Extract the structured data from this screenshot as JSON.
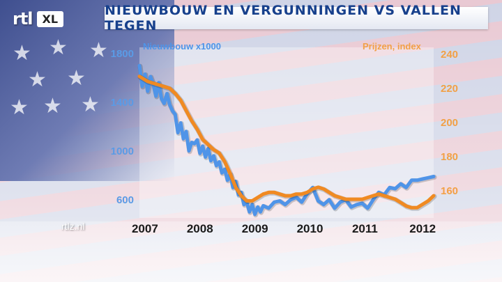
{
  "brand": {
    "logo_rtl": "rtl",
    "logo_xl": "XL"
  },
  "header": {
    "title": "NIEUWBOUW EN VERGUNNINGEN VS VALLEN TEGEN"
  },
  "footer": {
    "source": "rtlz.nl"
  },
  "colors": {
    "left_series": "#4f94e8",
    "right_series": "#f08a22",
    "title": "#17408c"
  },
  "chart_data": {
    "type": "line",
    "title": "NIEUWBOUW EN VERGUNNINGEN VS VALLEN TEGEN",
    "x_tick_labels": [
      "2007",
      "2008",
      "2009",
      "2010",
      "2011",
      "2012"
    ],
    "y_left": {
      "label": "Nieuwbouw x1000",
      "ticks": [
        600,
        1000,
        1400,
        1800
      ],
      "ylim": [
        450,
        1850
      ]
    },
    "y_right": {
      "label": "Prijzen, index",
      "ticks": [
        160,
        180,
        200,
        220,
        240
      ],
      "ylim": [
        144,
        244
      ]
    },
    "grid": false,
    "series": [
      {
        "name": "Nieuwbouw x1000",
        "axis": "left",
        "x": [
          2006.95,
          2007.0,
          2007.05,
          2007.1,
          2007.15,
          2007.2,
          2007.25,
          2007.3,
          2007.35,
          2007.4,
          2007.45,
          2007.5,
          2007.55,
          2007.6,
          2007.65,
          2007.7,
          2007.75,
          2007.8,
          2007.85,
          2007.9,
          2007.95,
          2008.0,
          2008.05,
          2008.1,
          2008.15,
          2008.2,
          2008.25,
          2008.3,
          2008.35,
          2008.4,
          2008.45,
          2008.5,
          2008.55,
          2008.6,
          2008.65,
          2008.7,
          2008.75,
          2008.8,
          2008.85,
          2008.9,
          2008.95,
          2009.0,
          2009.05,
          2009.1,
          2009.15,
          2009.2,
          2009.3,
          2009.4,
          2009.5,
          2009.6,
          2009.7,
          2009.8,
          2009.9,
          2010.0,
          2010.1,
          2010.2,
          2010.3,
          2010.4,
          2010.5,
          2010.6,
          2010.7,
          2010.8,
          2010.9,
          2011.0,
          2011.1,
          2011.2,
          2011.3,
          2011.4,
          2011.5,
          2011.6,
          2011.7,
          2011.8,
          2011.9,
          2012.0,
          2012.1,
          2012.2,
          2012.3
        ],
        "values": [
          1700,
          1530,
          1630,
          1490,
          1610,
          1550,
          1450,
          1560,
          1430,
          1390,
          1470,
          1380,
          1330,
          1300,
          1150,
          1230,
          1100,
          1160,
          1000,
          1070,
          1060,
          1090,
          980,
          1040,
          950,
          1020,
          920,
          960,
          880,
          910,
          820,
          850,
          760,
          810,
          700,
          750,
          640,
          660,
          560,
          580,
          500,
          560,
          480,
          540,
          500,
          550,
          530,
          580,
          590,
          560,
          600,
          620,
          580,
          650,
          700,
          590,
          560,
          600,
          530,
          580,
          600,
          540,
          560,
          570,
          530,
          600,
          660,
          640,
          700,
          690,
          730,
          700,
          760,
          760,
          770,
          780,
          790
        ]
      },
      {
        "name": "Prijzen, index",
        "axis": "right",
        "x": [
          2006.95,
          2007.1,
          2007.3,
          2007.5,
          2007.6,
          2007.7,
          2007.8,
          2007.9,
          2008.0,
          2008.1,
          2008.2,
          2008.3,
          2008.4,
          2008.5,
          2008.6,
          2008.7,
          2008.8,
          2008.9,
          2009.0,
          2009.1,
          2009.2,
          2009.3,
          2009.4,
          2009.5,
          2009.6,
          2009.7,
          2009.8,
          2009.9,
          2010.0,
          2010.1,
          2010.2,
          2010.3,
          2010.4,
          2010.5,
          2010.6,
          2010.7,
          2010.8,
          2010.9,
          2011.0,
          2011.1,
          2011.2,
          2011.3,
          2011.4,
          2011.5,
          2011.6,
          2011.7,
          2011.8,
          2011.9,
          2012.0,
          2012.1,
          2012.2,
          2012.3
        ],
        "values": [
          227,
          224,
          222,
          220,
          217,
          213,
          207,
          201,
          196,
          190,
          187,
          184,
          182,
          177,
          170,
          162,
          157,
          154,
          154,
          156,
          158,
          159,
          159,
          158,
          157,
          157,
          158,
          158,
          159,
          161,
          162,
          161,
          159,
          157,
          156,
          155,
          155,
          155,
          155,
          156,
          157,
          158,
          157,
          156,
          155,
          153,
          151,
          150,
          150,
          152,
          154,
          157
        ]
      }
    ]
  }
}
